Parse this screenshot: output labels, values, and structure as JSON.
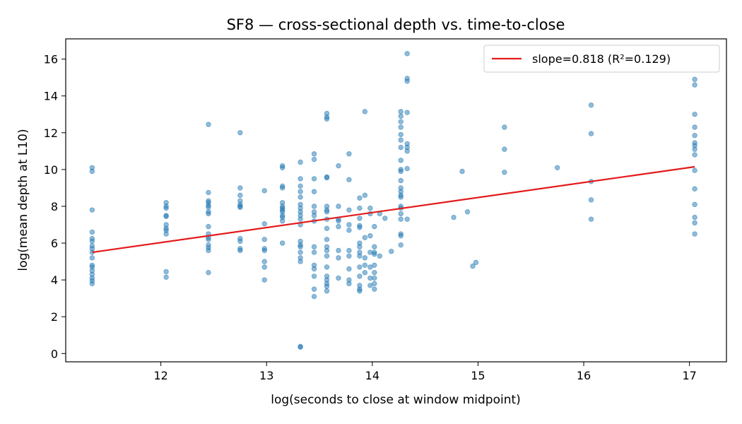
{
  "chart_data": {
    "type": "scatter",
    "title": "SF8 — cross-sectional depth vs. time-to-close",
    "xlabel": "log(seconds to close at window midpoint)",
    "ylabel": "log(mean depth at L10)",
    "xlim": [
      11.1,
      17.35
    ],
    "ylim": [
      -0.45,
      17.1
    ],
    "xticks": [
      12,
      13,
      14,
      15,
      16,
      17
    ],
    "yticks": [
      0,
      2,
      4,
      6,
      8,
      10,
      12,
      14,
      16
    ],
    "grid": false,
    "legend_position": "top-right",
    "point_color": "#1f77b4",
    "fit_line": {
      "label": "slope=0.818 (R²=0.129)",
      "color": "#e31a1c",
      "x": [
        11.35,
        17.05
      ],
      "y": [
        5.5,
        10.15
      ]
    },
    "points": [
      [
        11.35,
        10.1
      ],
      [
        11.35,
        9.9
      ],
      [
        11.35,
        7.8
      ],
      [
        11.35,
        6.6
      ],
      [
        11.35,
        6.25
      ],
      [
        11.35,
        6.1
      ],
      [
        11.35,
        5.85
      ],
      [
        11.35,
        5.7
      ],
      [
        11.35,
        5.5
      ],
      [
        11.35,
        5.2
      ],
      [
        11.35,
        4.8
      ],
      [
        11.35,
        4.7
      ],
      [
        11.35,
        4.5
      ],
      [
        11.35,
        4.3
      ],
      [
        11.35,
        4.1
      ],
      [
        11.35,
        3.95
      ],
      [
        11.35,
        3.8
      ],
      [
        12.05,
        8.2
      ],
      [
        12.05,
        8.0
      ],
      [
        12.05,
        7.9
      ],
      [
        12.05,
        7.5
      ],
      [
        12.05,
        7.45
      ],
      [
        12.05,
        7.0
      ],
      [
        12.05,
        6.8
      ],
      [
        12.05,
        6.7
      ],
      [
        12.05,
        6.5
      ],
      [
        12.05,
        4.45
      ],
      [
        12.05,
        4.15
      ],
      [
        12.45,
        12.45
      ],
      [
        12.45,
        8.75
      ],
      [
        12.45,
        8.3
      ],
      [
        12.45,
        8.2
      ],
      [
        12.45,
        8.05
      ],
      [
        12.45,
        7.95
      ],
      [
        12.45,
        7.7
      ],
      [
        12.45,
        7.6
      ],
      [
        12.45,
        6.9
      ],
      [
        12.45,
        6.5
      ],
      [
        12.45,
        6.3
      ],
      [
        12.45,
        6.2
      ],
      [
        12.45,
        5.9
      ],
      [
        12.45,
        5.75
      ],
      [
        12.45,
        5.6
      ],
      [
        12.45,
        4.4
      ],
      [
        12.75,
        12.0
      ],
      [
        12.75,
        9.0
      ],
      [
        12.75,
        8.6
      ],
      [
        12.75,
        8.3
      ],
      [
        12.75,
        8.1
      ],
      [
        12.75,
        8.0
      ],
      [
        12.75,
        7.95
      ],
      [
        12.75,
        6.25
      ],
      [
        12.75,
        6.1
      ],
      [
        12.75,
        5.7
      ],
      [
        12.75,
        5.6
      ],
      [
        12.98,
        8.85
      ],
      [
        12.98,
        7.05
      ],
      [
        12.98,
        6.2
      ],
      [
        12.98,
        5.7
      ],
      [
        12.98,
        5.6
      ],
      [
        12.98,
        5.0
      ],
      [
        12.98,
        4.7
      ],
      [
        12.98,
        4.0
      ],
      [
        13.15,
        10.2
      ],
      [
        13.15,
        10.1
      ],
      [
        13.15,
        9.1
      ],
      [
        13.15,
        9.0
      ],
      [
        13.15,
        8.2
      ],
      [
        13.15,
        8.0
      ],
      [
        13.15,
        7.9
      ],
      [
        13.15,
        7.8
      ],
      [
        13.15,
        7.7
      ],
      [
        13.15,
        7.5
      ],
      [
        13.15,
        7.4
      ],
      [
        13.15,
        7.2
      ],
      [
        13.15,
        6.0
      ],
      [
        13.32,
        10.4
      ],
      [
        13.32,
        9.5
      ],
      [
        13.32,
        9.1
      ],
      [
        13.32,
        8.8
      ],
      [
        13.32,
        8.5
      ],
      [
        13.32,
        8.1
      ],
      [
        13.32,
        7.9
      ],
      [
        13.32,
        7.7
      ],
      [
        13.32,
        7.5
      ],
      [
        13.32,
        7.3
      ],
      [
        13.32,
        7.0
      ],
      [
        13.32,
        6.1
      ],
      [
        13.32,
        5.9
      ],
      [
        13.32,
        5.8
      ],
      [
        13.32,
        5.5
      ],
      [
        13.32,
        5.2
      ],
      [
        13.32,
        5.0
      ],
      [
        13.32,
        0.38
      ],
      [
        13.32,
        0.35
      ],
      [
        13.45,
        10.85
      ],
      [
        13.45,
        10.55
      ],
      [
        13.45,
        9.5
      ],
      [
        13.45,
        8.8
      ],
      [
        13.45,
        8.0
      ],
      [
        13.45,
        7.7
      ],
      [
        13.45,
        7.5
      ],
      [
        13.45,
        7.2
      ],
      [
        13.45,
        5.8
      ],
      [
        13.45,
        5.5
      ],
      [
        13.45,
        4.8
      ],
      [
        13.45,
        4.6
      ],
      [
        13.45,
        4.2
      ],
      [
        13.45,
        3.5
      ],
      [
        13.45,
        3.1
      ],
      [
        13.57,
        13.05
      ],
      [
        13.57,
        12.85
      ],
      [
        13.57,
        12.75
      ],
      [
        13.57,
        9.6
      ],
      [
        13.57,
        9.55
      ],
      [
        13.57,
        8.0
      ],
      [
        13.57,
        7.8
      ],
      [
        13.57,
        7.7
      ],
      [
        13.57,
        7.3
      ],
      [
        13.57,
        6.8
      ],
      [
        13.57,
        6.2
      ],
      [
        13.57,
        5.8
      ],
      [
        13.57,
        5.6
      ],
      [
        13.57,
        5.3
      ],
      [
        13.57,
        4.7
      ],
      [
        13.57,
        4.2
      ],
      [
        13.57,
        4.0
      ],
      [
        13.57,
        3.8
      ],
      [
        13.57,
        3.65
      ],
      [
        13.57,
        3.4
      ],
      [
        13.68,
        10.2
      ],
      [
        13.68,
        8.0
      ],
      [
        13.68,
        7.3
      ],
      [
        13.68,
        7.2
      ],
      [
        13.68,
        6.9
      ],
      [
        13.68,
        5.6
      ],
      [
        13.68,
        5.2
      ],
      [
        13.68,
        4.1
      ],
      [
        13.78,
        10.85
      ],
      [
        13.78,
        9.45
      ],
      [
        13.78,
        7.8
      ],
      [
        13.78,
        7.0
      ],
      [
        13.78,
        6.7
      ],
      [
        13.78,
        5.6
      ],
      [
        13.78,
        5.3
      ],
      [
        13.78,
        4.6
      ],
      [
        13.78,
        4.0
      ],
      [
        13.78,
        3.8
      ],
      [
        13.88,
        8.45
      ],
      [
        13.88,
        7.9
      ],
      [
        13.88,
        7.35
      ],
      [
        13.88,
        6.95
      ],
      [
        13.88,
        6.85
      ],
      [
        13.88,
        6.0
      ],
      [
        13.88,
        5.8
      ],
      [
        13.88,
        5.5
      ],
      [
        13.88,
        5.3
      ],
      [
        13.88,
        4.7
      ],
      [
        13.88,
        4.2
      ],
      [
        13.88,
        3.7
      ],
      [
        13.88,
        3.5
      ],
      [
        13.88,
        3.4
      ],
      [
        13.93,
        13.15
      ],
      [
        13.93,
        8.6
      ],
      [
        13.93,
        6.3
      ],
      [
        13.93,
        5.2
      ],
      [
        13.93,
        4.8
      ],
      [
        13.93,
        4.4
      ],
      [
        13.98,
        7.9
      ],
      [
        13.98,
        7.6
      ],
      [
        13.98,
        6.4
      ],
      [
        13.98,
        5.5
      ],
      [
        13.98,
        4.7
      ],
      [
        13.98,
        4.1
      ],
      [
        13.98,
        3.7
      ],
      [
        14.02,
        6.9
      ],
      [
        14.02,
        5.8
      ],
      [
        14.02,
        5.5
      ],
      [
        14.02,
        5.4
      ],
      [
        14.02,
        4.8
      ],
      [
        14.02,
        4.4
      ],
      [
        14.02,
        4.1
      ],
      [
        14.02,
        3.8
      ],
      [
        14.02,
        3.5
      ],
      [
        14.07,
        7.6
      ],
      [
        14.07,
        5.3
      ],
      [
        14.12,
        7.35
      ],
      [
        14.18,
        5.55
      ],
      [
        14.27,
        13.15
      ],
      [
        14.27,
        12.9
      ],
      [
        14.27,
        12.6
      ],
      [
        14.27,
        12.3
      ],
      [
        14.27,
        11.9
      ],
      [
        14.27,
        11.6
      ],
      [
        14.27,
        11.2
      ],
      [
        14.27,
        10.5
      ],
      [
        14.27,
        10.0
      ],
      [
        14.27,
        9.9
      ],
      [
        14.27,
        9.4
      ],
      [
        14.27,
        9.0
      ],
      [
        14.27,
        8.8
      ],
      [
        14.27,
        8.6
      ],
      [
        14.27,
        8.5
      ],
      [
        14.27,
        8.0
      ],
      [
        14.27,
        7.9
      ],
      [
        14.27,
        7.6
      ],
      [
        14.27,
        7.3
      ],
      [
        14.27,
        6.5
      ],
      [
        14.27,
        6.4
      ],
      [
        14.27,
        5.9
      ],
      [
        14.33,
        16.3
      ],
      [
        14.33,
        14.95
      ],
      [
        14.33,
        14.8
      ],
      [
        14.33,
        13.1
      ],
      [
        14.33,
        11.4
      ],
      [
        14.33,
        11.2
      ],
      [
        14.33,
        11.0
      ],
      [
        14.33,
        10.05
      ],
      [
        14.33,
        7.3
      ],
      [
        14.77,
        7.4
      ],
      [
        14.85,
        9.9
      ],
      [
        14.9,
        7.7
      ],
      [
        14.95,
        4.75
      ],
      [
        14.98,
        4.95
      ],
      [
        15.25,
        12.3
      ],
      [
        15.25,
        11.1
      ],
      [
        15.25,
        9.85
      ],
      [
        15.75,
        10.1
      ],
      [
        16.07,
        13.5
      ],
      [
        16.07,
        11.95
      ],
      [
        16.07,
        9.35
      ],
      [
        16.07,
        8.35
      ],
      [
        16.07,
        7.3
      ],
      [
        17.05,
        14.9
      ],
      [
        17.05,
        14.6
      ],
      [
        17.05,
        13.0
      ],
      [
        17.05,
        12.3
      ],
      [
        17.05,
        11.85
      ],
      [
        17.05,
        11.45
      ],
      [
        17.05,
        11.3
      ],
      [
        17.05,
        11.1
      ],
      [
        17.05,
        10.8
      ],
      [
        17.05,
        9.95
      ],
      [
        17.05,
        8.95
      ],
      [
        17.05,
        8.1
      ],
      [
        17.05,
        7.4
      ],
      [
        17.05,
        7.1
      ],
      [
        17.05,
        6.5
      ]
    ]
  }
}
